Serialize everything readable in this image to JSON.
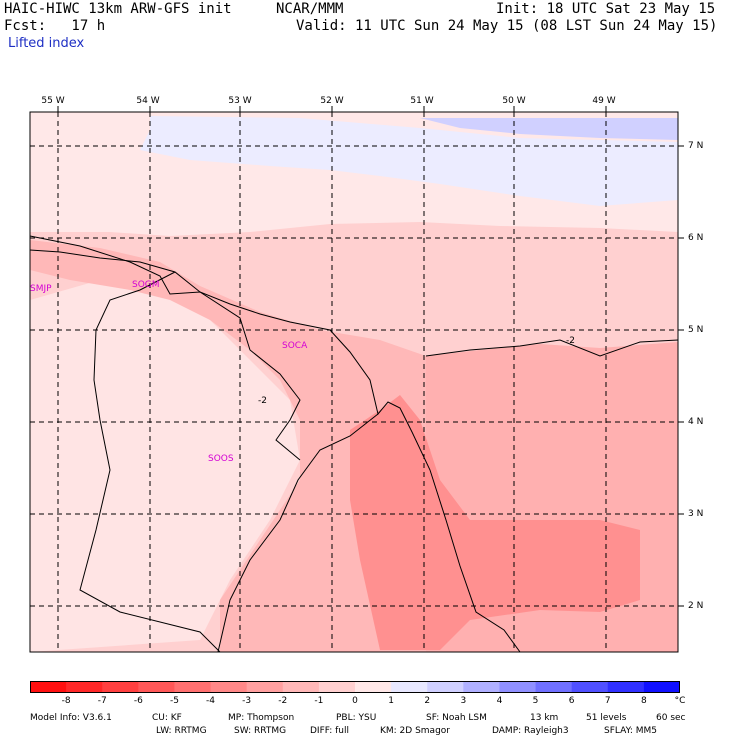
{
  "header": {
    "model": "HAIC-HIWC 13km ARW-GFS init",
    "org": "NCAR/MMM",
    "init": "Init: 18 UTC Sat 23 May 15",
    "fcst": "Fcst:   17 h",
    "valid": "Valid: 11 UTC Sun 24 May 15 (08 LST Sun 24 May 15)",
    "field": "Lifted index"
  },
  "map": {
    "lon_labels": [
      "55 W",
      "54 W",
      "53 W",
      "52 W",
      "51 W",
      "50 W",
      "49 W"
    ],
    "lat_labels": [
      "7 N",
      "6 N",
      "5 N",
      "4 N",
      "3 N",
      "2 N"
    ],
    "stations": [
      "SMJP",
      "SOGM",
      "SOCA",
      "SOOS"
    ],
    "contour_labels": [
      "-2",
      "-2"
    ]
  },
  "colorbar": {
    "ticks": [
      "-8",
      "-7",
      "-6",
      "-5",
      "-4",
      "-3",
      "-2",
      "-1",
      "0",
      "1",
      "2",
      "3",
      "4",
      "5",
      "6",
      "7",
      "8"
    ],
    "unit": "°C",
    "colors": [
      "#ff1010",
      "#ff2828",
      "#ff4040",
      "#ff5858",
      "#ff7070",
      "#ff8888",
      "#ffa0a0",
      "#ffb8b8",
      "#ffd0d0",
      "#ffe8e8",
      "#e8e8ff",
      "#d0d0ff",
      "#b0b0ff",
      "#9090ff",
      "#7070ff",
      "#5050ff",
      "#3030ff",
      "#1010ff"
    ]
  },
  "footer": {
    "line1": [
      "Model Info: V3.6.1",
      "CU: KF",
      "MP: Thompson",
      "PBL: YSU",
      "SF: Noah LSM",
      "13 km",
      "51 levels",
      "60 sec"
    ],
    "line2": [
      "LW: RRTMG",
      "SW: RRTMG",
      "DIFF: full",
      "KM: 2D Smagor",
      "DAMP: Rayleigh3",
      "SFLAY: MM5"
    ]
  },
  "colors": {
    "station": "#d400d4",
    "field_label": "#1e2fc4"
  }
}
